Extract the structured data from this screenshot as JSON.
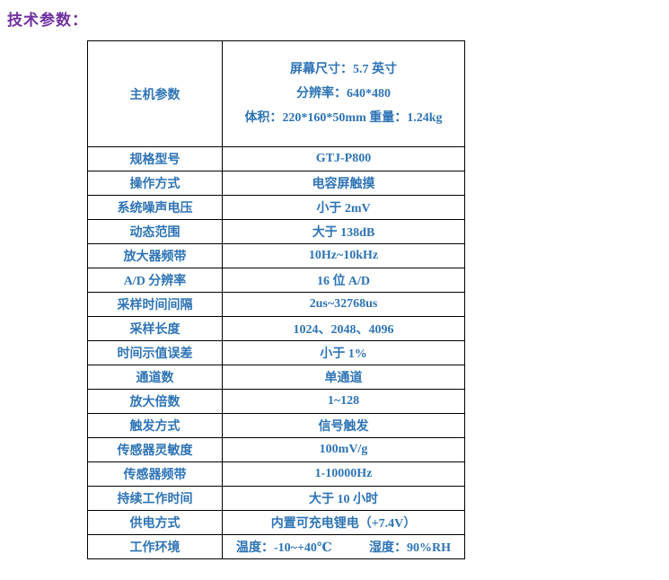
{
  "page": {
    "title": "技术参数："
  },
  "colors": {
    "title": "#7030A0",
    "table_text": "#2E74B5",
    "border": "#000000"
  },
  "table": {
    "main_row": {
      "label": "主机参数",
      "lines": [
        "屏幕尺寸：5.7 英寸",
        "分辨率：640*480",
        "体积：220*160*50mm  重量：1.24kg"
      ]
    },
    "rows": [
      {
        "label": "规格型号",
        "value": "GTJ-P800"
      },
      {
        "label": "操作方式",
        "value": "电容屏触摸"
      },
      {
        "label": "系统噪声电压",
        "value": "小于 2mV"
      },
      {
        "label": "动态范围",
        "value": "大于 138dB"
      },
      {
        "label": "放大器频带",
        "value": "10Hz~10kHz"
      },
      {
        "label": "A/D 分辨率",
        "value": "16 位 A/D"
      },
      {
        "label": "采样时间间隔",
        "value": "2us~32768us"
      },
      {
        "label": "采样长度",
        "value": "1024、2048、4096"
      },
      {
        "label": "时间示值误差",
        "value": "小于 1%"
      },
      {
        "label": "通道数",
        "value": "单通道"
      },
      {
        "label": "放大倍数",
        "value": "1~128"
      },
      {
        "label": "触发方式",
        "value": "信号触发"
      },
      {
        "label": "传感器灵敏度",
        "value": "100mV/g"
      },
      {
        "label": "传感器频带",
        "value": "1-10000Hz"
      },
      {
        "label": "持续工作时间",
        "value": "大于 10 小时"
      },
      {
        "label": "供电方式",
        "value": "内置可充电锂电（+7.4V）"
      }
    ],
    "env_row": {
      "label": "工作环境",
      "temperature": "温度：-10~+40℃",
      "humidity": "湿度：90%RH"
    }
  }
}
